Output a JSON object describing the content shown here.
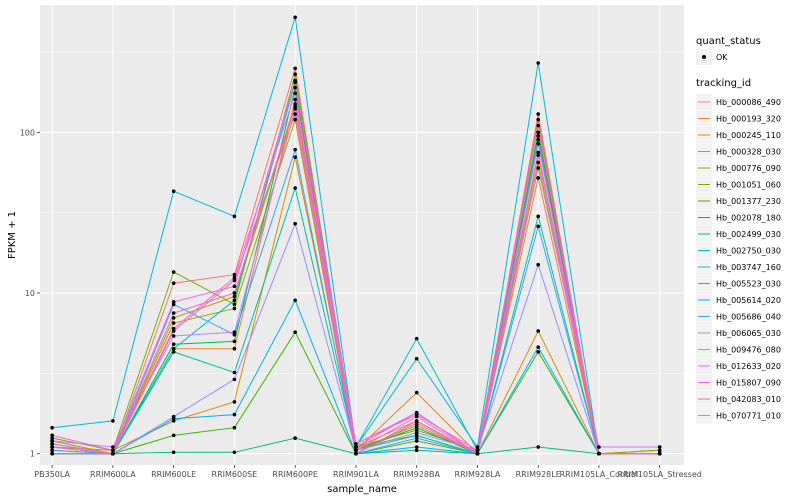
{
  "chart_data": {
    "type": "line",
    "xlabel": "sample_name",
    "ylabel": "FPKM + 1",
    "y_scale": "log10",
    "ylim": [
      0.85,
      620
    ],
    "grid": true,
    "legend_position": "right",
    "categories": [
      "PB350LA",
      "RRIM600LA",
      "RRIM600LE",
      "RRIM600SE",
      "RRIM600PE",
      "RRIM901LA",
      "RRIM928BA",
      "RRIM928LA",
      "RRIM928LE",
      "RRIM105LA_Control",
      "RRIM105LA_Stressed"
    ],
    "y_ticks": [
      1,
      10,
      100
    ],
    "y_tick_labels": [
      "1",
      "10",
      "100"
    ],
    "shape_legend": {
      "title": "quant_status",
      "items": [
        "OK"
      ]
    },
    "color_legend_title": "tracking_id",
    "series": [
      {
        "name": "Hb_000086_490",
        "color": "#F8766D",
        "values": [
          1.2,
          1.0,
          11.5,
          13.0,
          250,
          1.1,
          1.8,
          1.0,
          95,
          1.0,
          1.0
        ]
      },
      {
        "name": "Hb_000193_320",
        "color": "#EA8331",
        "values": [
          1.15,
          1.0,
          4.5,
          4.5,
          160,
          1.05,
          2.4,
          1.0,
          52,
          1.0,
          1.0
        ]
      },
      {
        "name": "Hb_000245_110",
        "color": "#D89000",
        "values": [
          1.1,
          1.05,
          1.6,
          2.1,
          70,
          1.05,
          1.5,
          1.0,
          5.8,
          1.0,
          1.0
        ]
      },
      {
        "name": "Hb_000328_030",
        "color": "#C09B00",
        "values": [
          1.2,
          1.0,
          7.0,
          9.5,
          145,
          1.1,
          1.3,
          1.0,
          72,
          1.0,
          1.05
        ]
      },
      {
        "name": "Hb_000776_090",
        "color": "#A3A500",
        "values": [
          1.05,
          1.0,
          6.5,
          8.0,
          120,
          1.0,
          1.6,
          1.0,
          65,
          1.0,
          1.0
        ]
      },
      {
        "name": "Hb_001051_060",
        "color": "#7CAE00",
        "values": [
          1.25,
          1.05,
          13.5,
          8.5,
          230,
          1.1,
          1.4,
          1.05,
          120,
          1.0,
          1.05
        ]
      },
      {
        "name": "Hb_001377_230",
        "color": "#39B600",
        "values": [
          1.0,
          1.0,
          1.3,
          1.45,
          5.7,
          1.0,
          1.2,
          1.0,
          4.3,
          1.0,
          1.0
        ]
      },
      {
        "name": "Hb_002078_180",
        "color": "#00BB4E",
        "values": [
          1.1,
          1.0,
          4.8,
          5.0,
          190,
          1.05,
          1.45,
          1.0,
          100,
          1.0,
          1.0
        ]
      },
      {
        "name": "Hb_002499_030",
        "color": "#00BF7D",
        "values": [
          1.0,
          1.0,
          1.02,
          1.02,
          1.25,
          1.0,
          1.05,
          1.0,
          1.1,
          1.0,
          1.0
        ]
      },
      {
        "name": "Hb_002750_030",
        "color": "#00C1A3",
        "values": [
          1.1,
          1.0,
          4.3,
          3.2,
          45,
          1.05,
          1.3,
          1.0,
          30,
          1.0,
          1.0
        ]
      },
      {
        "name": "Hb_003747_160",
        "color": "#00BFC4",
        "values": [
          1.15,
          1.0,
          4.5,
          9.0,
          205,
          1.1,
          5.2,
          1.05,
          90,
          1.0,
          1.0
        ]
      },
      {
        "name": "Hb_005523_030",
        "color": "#00BAE0",
        "values": [
          1.45,
          1.6,
          43,
          30,
          520,
          1.1,
          3.9,
          1.1,
          270,
          1.0,
          1.0
        ]
      },
      {
        "name": "Hb_005614_020",
        "color": "#00B0F6",
        "values": [
          1.0,
          1.0,
          1.65,
          1.75,
          9.0,
          1.0,
          1.1,
          1.0,
          4.6,
          1.0,
          1.0
        ]
      },
      {
        "name": "Hb_005686_040",
        "color": "#35A2FF",
        "values": [
          1.05,
          1.0,
          8.5,
          5.5,
          78,
          1.0,
          1.25,
          1.0,
          26,
          1.0,
          1.0
        ]
      },
      {
        "name": "Hb_006065_030",
        "color": "#9590FF",
        "values": [
          1.1,
          1.0,
          1.7,
          2.9,
          27,
          1.05,
          1.35,
          1.05,
          15,
          1.0,
          1.0
        ]
      },
      {
        "name": "Hb_009476_080",
        "color": "#C77CFF",
        "values": [
          1.2,
          1.1,
          5.4,
          5.7,
          140,
          1.15,
          1.8,
          1.0,
          60,
          1.1,
          1.1
        ]
      },
      {
        "name": "Hb_012633_020",
        "color": "#E76BF3",
        "values": [
          1.15,
          1.0,
          6.0,
          12.5,
          175,
          1.1,
          1.6,
          1.0,
          85,
          1.0,
          1.0
        ]
      },
      {
        "name": "Hb_015807_090",
        "color": "#FA62DB",
        "values": [
          1.3,
          1.05,
          8.8,
          11.0,
          210,
          1.15,
          1.75,
          1.05,
          110,
          1.0,
          1.0
        ]
      },
      {
        "name": "Hb_042083_010",
        "color": "#FF62BC",
        "values": [
          1.0,
          1.0,
          7.5,
          10.0,
          150,
          1.0,
          1.55,
          1.0,
          75,
          1.0,
          1.0
        ]
      },
      {
        "name": "Hb_070771_010",
        "color": "#FF6C91",
        "values": [
          1.1,
          1.0,
          5.8,
          12.0,
          130,
          1.05,
          1.7,
          1.0,
          130,
          1.0,
          1.0
        ]
      }
    ]
  }
}
